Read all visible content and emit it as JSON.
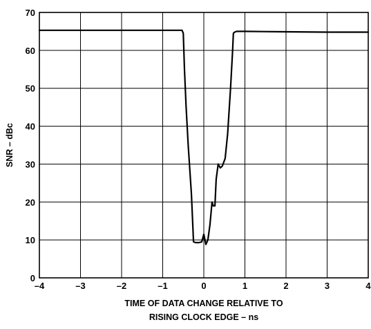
{
  "chart_data": {
    "type": "line",
    "title": "",
    "xlabel": [
      "TIME OF DATA CHANGE RELATIVE TO",
      "RISING CLOCK EDGE – ns"
    ],
    "ylabel": "SNR – dBc",
    "xlim": [
      -4,
      4
    ],
    "ylim": [
      0,
      70
    ],
    "grid": true,
    "x_ticks": [
      -4,
      -3,
      -2,
      -1,
      0,
      1,
      2,
      3,
      4
    ],
    "x_tick_labels": [
      "–4",
      "–3",
      "–2",
      "–1",
      "0",
      "1",
      "2",
      "3",
      "4"
    ],
    "y_ticks": [
      0,
      10,
      20,
      30,
      40,
      50,
      60,
      70
    ],
    "y_tick_labels": [
      "0",
      "10",
      "20",
      "30",
      "40",
      "50",
      "60",
      "70"
    ],
    "series": [
      {
        "x": [
          -4,
          -3,
          -2,
          -1,
          -0.6,
          -0.53,
          -0.5,
          -0.47,
          -0.43,
          -0.38,
          -0.3,
          -0.25,
          -0.2,
          -0.12,
          -0.05,
          0.0,
          0.05,
          0.1,
          0.15,
          0.2,
          0.23,
          0.27,
          0.3,
          0.35,
          0.4,
          0.45,
          0.52,
          0.58,
          0.65,
          0.7,
          0.72,
          0.75,
          0.8,
          1.0,
          2.0,
          3.0,
          4.0
        ],
        "y": [
          65.3,
          65.3,
          65.3,
          65.3,
          65.3,
          65.3,
          64.5,
          55,
          45,
          35,
          22,
          9.5,
          9.3,
          9.3,
          9.5,
          11.5,
          8.8,
          10,
          14,
          20,
          19,
          19,
          26,
          30,
          29,
          29.5,
          31.5,
          38,
          50,
          60,
          64.5,
          64.8,
          65,
          65,
          64.9,
          64.8,
          64.8
        ]
      }
    ]
  }
}
